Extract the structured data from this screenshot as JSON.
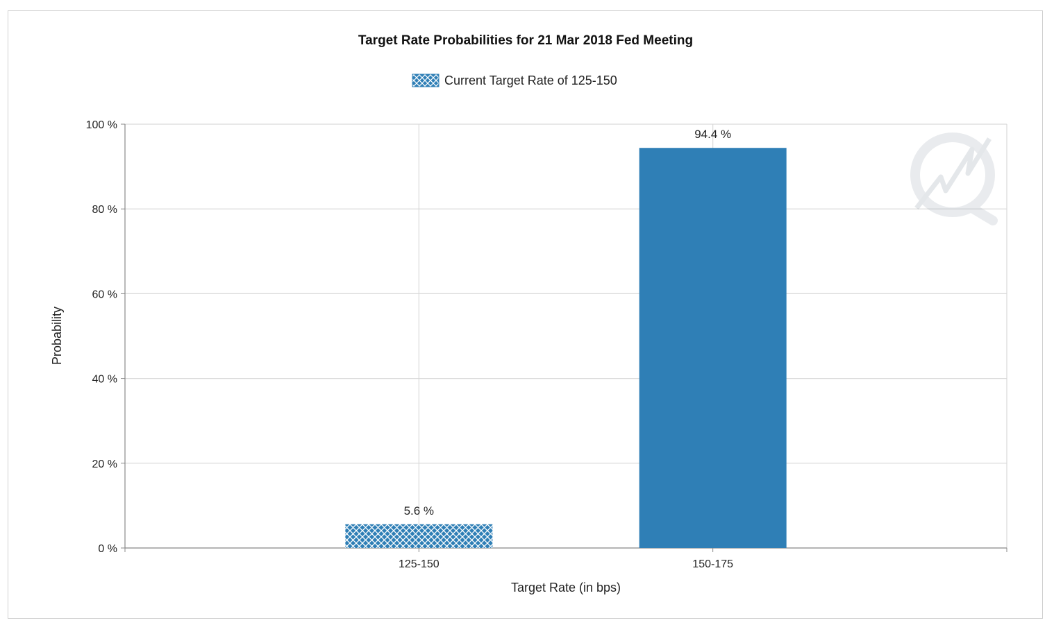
{
  "chart_data": {
    "type": "bar",
    "title": "Target Rate Probabilities for 21 Mar 2018 Fed Meeting",
    "xlabel": "Target Rate (in bps)",
    "ylabel": "Probability",
    "categories": [
      "125-150",
      "150-175"
    ],
    "values": [
      5.6,
      94.4
    ],
    "value_labels": [
      "5.6 %",
      "94.4 %"
    ],
    "ylim": [
      0,
      100
    ],
    "yticks": [
      0,
      20,
      40,
      60,
      80,
      100
    ],
    "ytick_labels": [
      "0 %",
      "20 %",
      "40 %",
      "60 %",
      "80 %",
      "100 %"
    ],
    "legend": {
      "entries": [
        "Current Target Rate of 125-150"
      ],
      "placement": "top-center"
    },
    "bar_styles": [
      "hatched",
      "solid"
    ],
    "colors": {
      "bar": "#2f7fb6",
      "hatch_line": "#ffffff",
      "grid": "#d9d9d9",
      "axis": "#888888"
    },
    "grid": true
  },
  "watermark": {
    "icon": "cme-fedwatch-logo-icon"
  }
}
